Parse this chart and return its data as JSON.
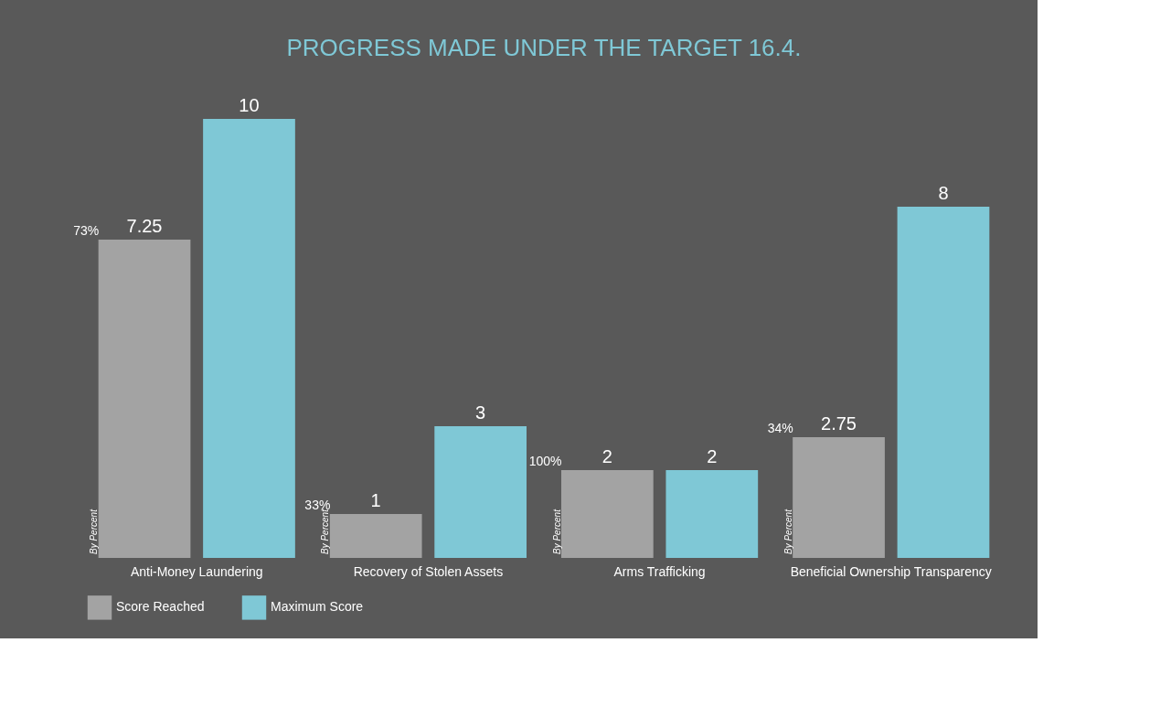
{
  "chart_data": {
    "type": "bar",
    "title": "PROGRESS MADE UNDER THE TARGET 16.4.",
    "categories": [
      "Anti-Money Laundering",
      "Recovery of Stolen Assets",
      "Arms Trafficking",
      "Beneficial Ownership Transparency"
    ],
    "series": [
      {
        "name": "Score Reached",
        "color": "#a3a3a3",
        "values": [
          7.25,
          1,
          2,
          2.75
        ]
      },
      {
        "name": "Maximum Score",
        "color": "#7fc8d6",
        "values": [
          10,
          3,
          2,
          8
        ]
      }
    ],
    "data_labels": true,
    "annotations": [
      "73%",
      "33%",
      "100%",
      "34%",
      "By Percent",
      "By Percent",
      "By Percent",
      "By Percent"
    ],
    "legend": "bottom left",
    "grid": false
  }
}
